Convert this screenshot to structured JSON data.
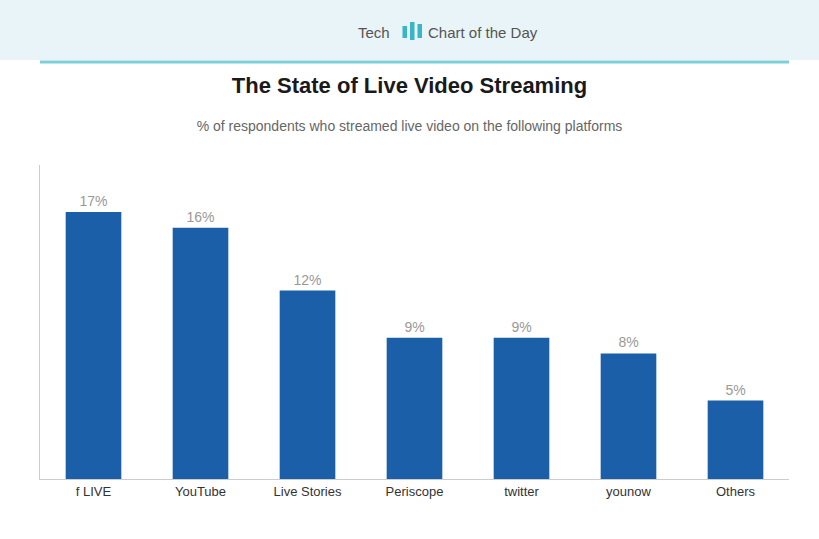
{
  "chart_data": {
    "type": "bar",
    "title": "The State of Live Video Streaming",
    "subtitle": "% of respondents who streamed live video on the following platforms",
    "annotations": [
      "Tech",
      "Chart of the Day"
    ],
    "categories": [
      "f LIVE",
      "YouTube",
      "Live Stories",
      "Periscope",
      "twitter",
      "younow",
      "Others"
    ],
    "values": [
      17,
      16,
      12,
      9,
      9,
      8,
      5
    ],
    "value_labels": [
      "17%",
      "16%",
      "12%",
      "9%",
      "9%",
      "8%",
      "5%"
    ],
    "data_labels": true,
    "color": "#1a5fa8",
    "ylim": [
      0,
      20
    ],
    "grid": false,
    "tick_labels": "x"
  }
}
